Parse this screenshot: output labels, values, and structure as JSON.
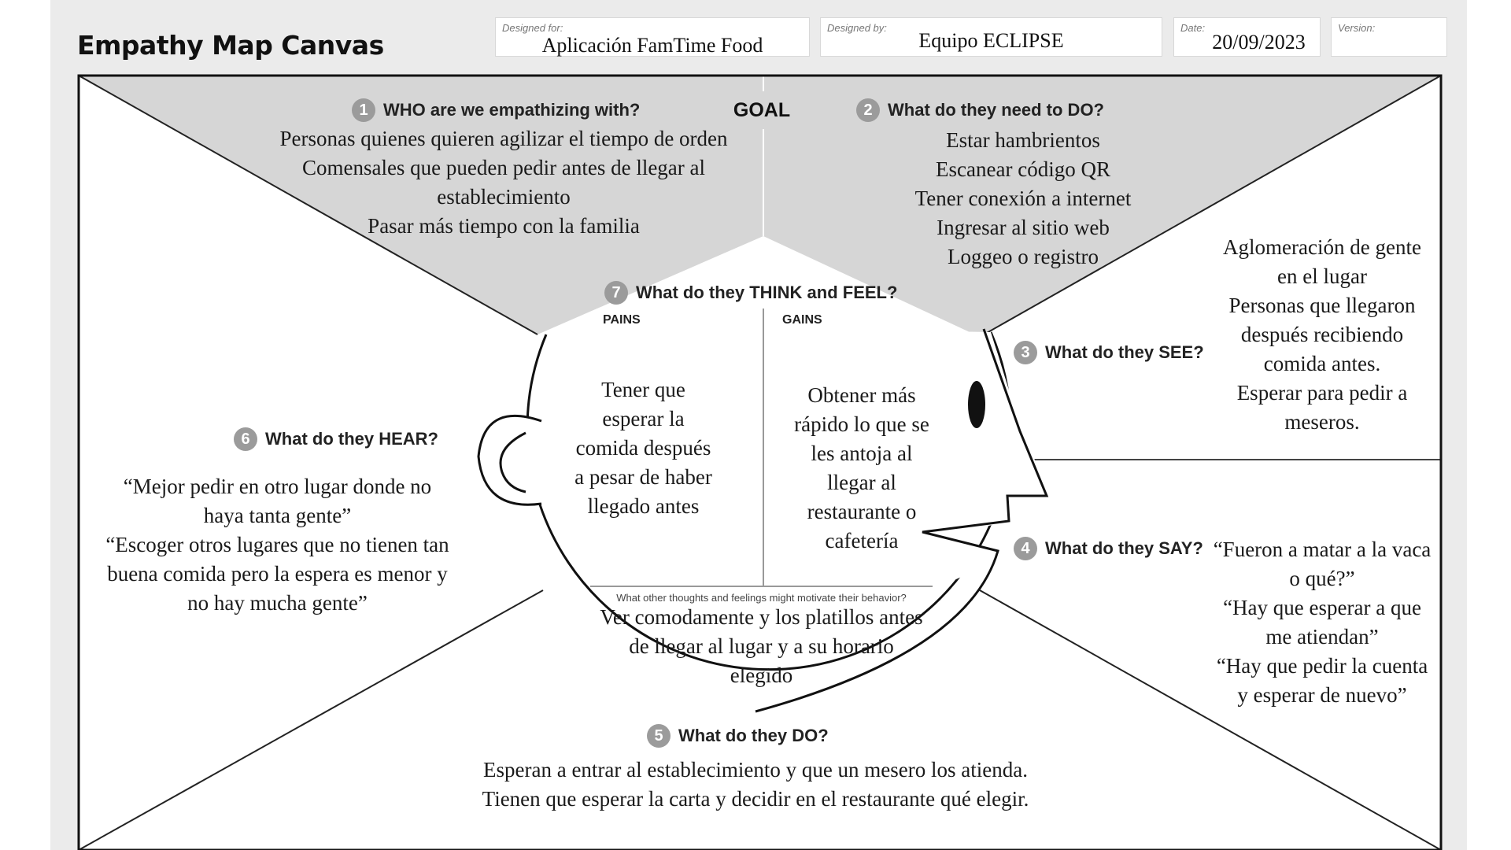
{
  "title": "Empathy Map Canvas",
  "header": {
    "designed_for_label": "Designed for:",
    "designed_for_value": "Aplicación FamTime Food",
    "designed_by_label": "Designed by:",
    "designed_by_value": "Equipo ECLIPSE",
    "date_label": "Date:",
    "date_value": "20/09/2023",
    "version_label": "Version:",
    "version_value": ""
  },
  "goal_label": "GOAL",
  "sections": {
    "who": {
      "number": "1",
      "question": "WHO are we empathizing with?",
      "lines": [
        "Personas quienes quieren agilizar el tiempo de orden",
        "Comensales que pueden pedir antes de llegar al",
        "establecimiento",
        "Pasar más tiempo con la familia"
      ]
    },
    "need_do": {
      "number": "2",
      "question": "What do they need to DO?",
      "lines": [
        "Estar hambrientos",
        "Escanear código QR",
        "Tener conexión a internet",
        "Ingresar al sitio web",
        "Loggeo  o registro"
      ]
    },
    "see": {
      "number": "3",
      "question": "What do they SEE?",
      "lines": [
        "Aglomeración de gente",
        "en el lugar",
        "Personas que llegaron",
        "después recibiendo",
        "comida antes.",
        "Esperar para pedir a",
        "meseros."
      ]
    },
    "say": {
      "number": "4",
      "question": "What do they SAY?",
      "lines": [
        "“Fueron a matar a la vaca",
        "o qué?”",
        "“Hay que esperar a que",
        "me atiendan”",
        "“Hay que pedir la cuenta",
        "y esperar de nuevo”"
      ]
    },
    "do": {
      "number": "5",
      "question": "What do they DO?",
      "lines": [
        "Esperan a entrar al establecimiento y que un mesero los atienda.",
        "Tienen que esperar  la carta y decidir en el restaurante qué elegir."
      ]
    },
    "hear": {
      "number": "6",
      "question": "What do they HEAR?",
      "lines": [
        "“Mejor pedir en otro lugar donde no",
        "haya tanta gente”",
        "“Escoger otros lugares que no tienen tan",
        "buena comida pero la espera es menor y",
        "no hay mucha gente”"
      ]
    },
    "think_feel": {
      "number": "7",
      "question": "What do they THINK and FEEL?",
      "pains_label": "PAINS",
      "gains_label": "GAINS",
      "pains_lines": [
        "Tener que",
        "esperar la",
        "comida después",
        "a pesar de haber",
        "llegado antes"
      ],
      "gains_lines": [
        "Obtener más",
        "rápido lo que se",
        "les antoja al",
        "llegar al",
        "restaurante o",
        "cafetería"
      ],
      "motivate_question": "What other thoughts and feelings might motivate their behavior?",
      "motivate_lines": [
        "Ver comodamente y los platillos antes",
        "de llegar al lugar y a su horario",
        "elegido"
      ]
    }
  }
}
